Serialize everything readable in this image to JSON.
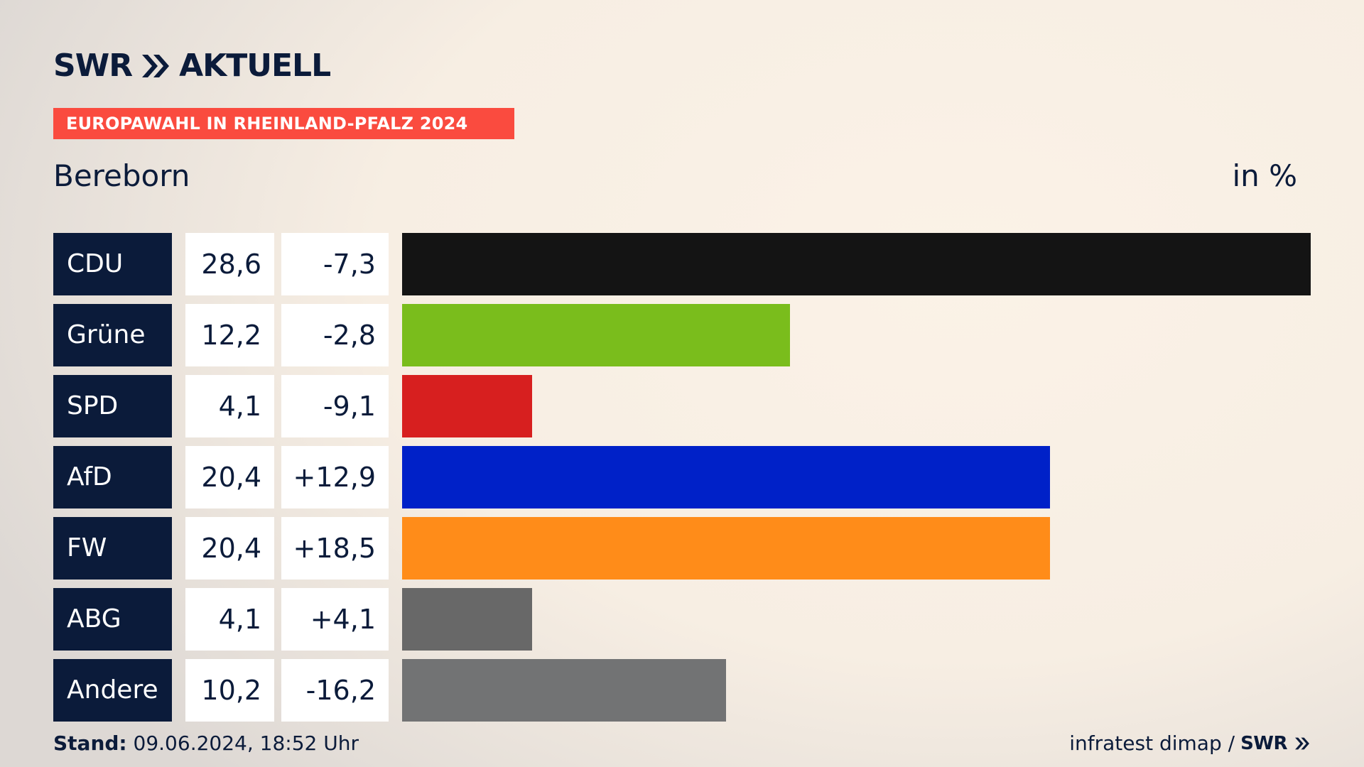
{
  "header": {
    "logo_text": "SWR",
    "logo_suffix": "AKTUELL",
    "banner": "EUROPAWAHL IN RHEINLAND-PFALZ 2024",
    "location": "Bereborn",
    "unit": "in %"
  },
  "colors": {
    "navy": "#0b1b3a",
    "banner_red": "#fa4b3f"
  },
  "chart_data": {
    "type": "bar",
    "orientation": "horizontal",
    "unit": "in %",
    "categories": [
      "CDU",
      "Grüne",
      "SPD",
      "AfD",
      "FW",
      "ABG",
      "Andere"
    ],
    "values": [
      28.6,
      12.2,
      4.1,
      20.4,
      20.4,
      4.1,
      10.2
    ],
    "value_labels": [
      "28,6",
      "12,2",
      "4,1",
      "20,4",
      "20,4",
      "4,1",
      "10,2"
    ],
    "differences": [
      "-7,3",
      "-2,8",
      "-9,1",
      "+12,9",
      "+18,5",
      "+4,1",
      "-16,2"
    ],
    "colors": [
      "#141414",
      "#7abd1c",
      "#d71f1f",
      "#0021c8",
      "#ff8c19",
      "#686868",
      "#727374"
    ],
    "xlim": [
      0,
      28.6
    ],
    "grid": false,
    "legend": "none"
  },
  "footer": {
    "stand_label": "Stand:",
    "stand_value": "09.06.2024, 18:52 Uhr",
    "source": "infratest dimap /",
    "source_logo": "SWR"
  }
}
